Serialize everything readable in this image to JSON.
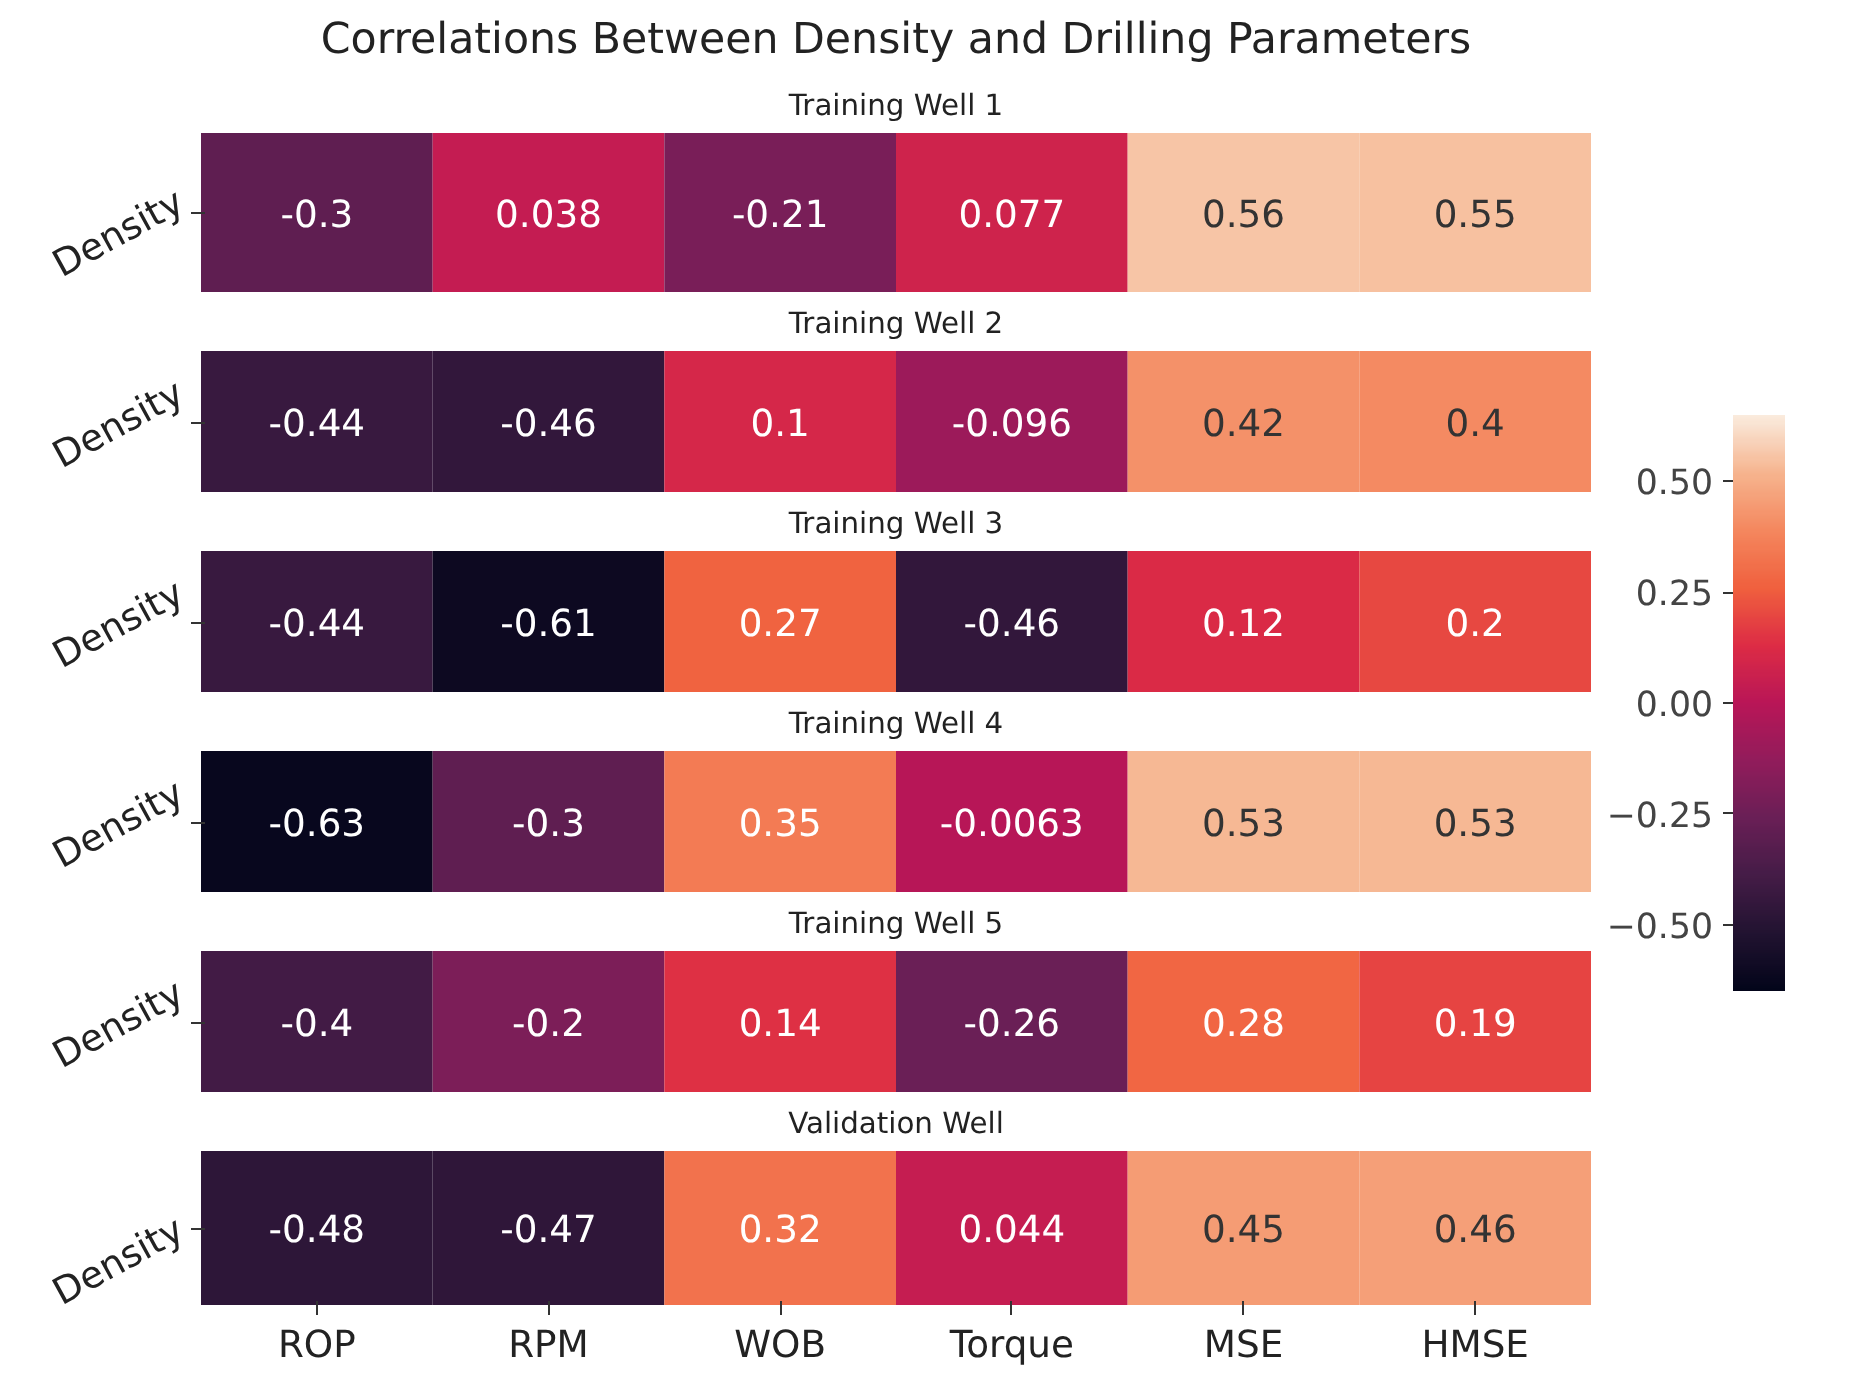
{
  "chart_data": [
    {
      "type": "heatmap",
      "title": "Correlations Between Density and Drilling Parameters",
      "subtitle": "Training Well 1",
      "categories": [
        null,
        null,
        null,
        null,
        null,
        null
      ],
      "y_categories": [
        "Density"
      ],
      "cells": [
        [
          -0.3,
          0.038,
          -0.21,
          0.077,
          0.56,
          0.55
        ]
      ],
      "data_labels": true,
      "tick_labels": "y"
    },
    {
      "type": "heatmap",
      "title": "Training Well 2",
      "categories": [
        null,
        null,
        null,
        null,
        null,
        null
      ],
      "y_categories": [
        "Density"
      ],
      "cells": [
        [
          -0.44,
          -0.46,
          0.1,
          -0.096,
          0.42,
          0.4
        ]
      ],
      "data_labels": true,
      "tick_labels": "y"
    },
    {
      "type": "heatmap",
      "title": "Training Well 3",
      "categories": [
        null,
        null,
        null,
        null,
        null,
        null
      ],
      "y_categories": [
        "Density"
      ],
      "cells": [
        [
          -0.44,
          -0.61,
          0.27,
          -0.46,
          0.12,
          0.2
        ]
      ],
      "data_labels": true,
      "tick_labels": "y"
    },
    {
      "type": "heatmap",
      "title": "Training Well 4",
      "categories": [
        null,
        null,
        null,
        null,
        null,
        null
      ],
      "y_categories": [
        "Density"
      ],
      "cells": [
        [
          -0.63,
          -0.3,
          0.35,
          -0.0063,
          0.53,
          0.53
        ]
      ],
      "data_labels": true,
      "tick_labels": "y"
    },
    {
      "type": "heatmap",
      "title": "Training Well 5",
      "categories": [
        null,
        null,
        null,
        null,
        null,
        null
      ],
      "y_categories": [
        "Density"
      ],
      "cells": [
        [
          -0.4,
          -0.2,
          0.14,
          -0.26,
          0.28,
          0.19
        ]
      ],
      "data_labels": true,
      "tick_labels": "y"
    },
    {
      "type": "heatmap",
      "title": "Validation Well",
      "categories": [
        "ROP",
        "RPM",
        "WOB",
        "Torque",
        "MSE",
        "HMSE"
      ],
      "y_categories": [
        "Density"
      ],
      "cells": [
        [
          -0.48,
          -0.47,
          0.32,
          0.044,
          0.45,
          0.46
        ]
      ],
      "data_labels": true,
      "clim": [
        -0.65,
        0.65
      ],
      "cticks": [
        {
          "value": -0.5,
          "label": "−0.50"
        },
        {
          "value": -0.25,
          "label": "−0.25"
        },
        {
          "value": 0,
          "label": "0.00"
        },
        {
          "value": 0.25,
          "label": "0.25"
        },
        {
          "value": 0.5,
          "label": "0.50"
        }
      ]
    }
  ]
}
